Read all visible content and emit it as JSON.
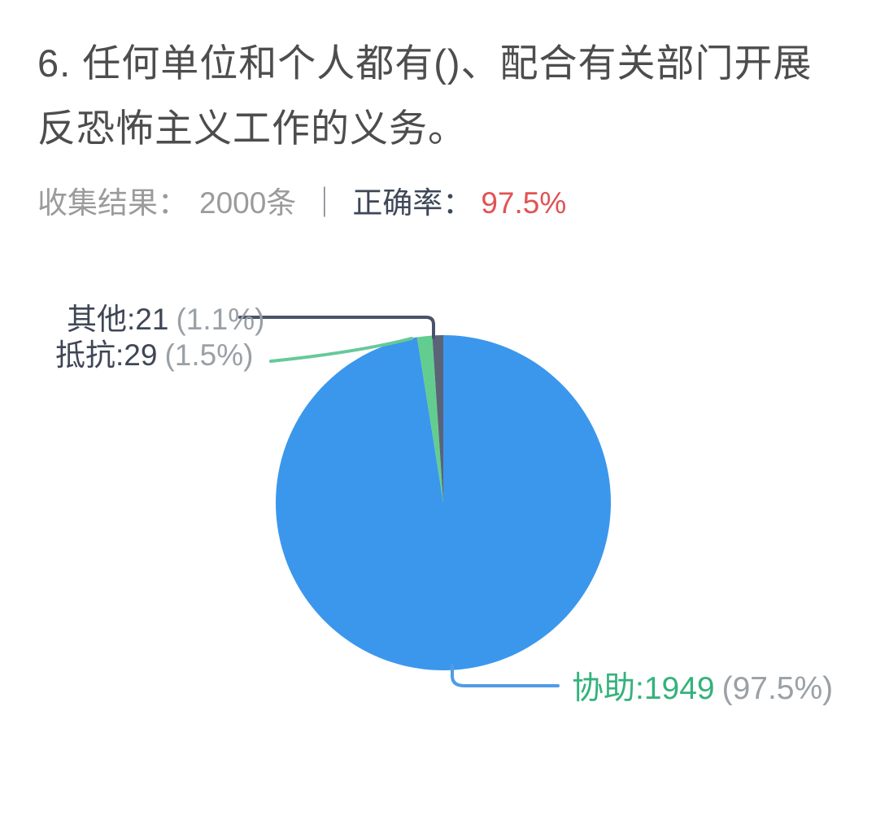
{
  "page": {
    "background": "#ffffff"
  },
  "question": {
    "number": "6.",
    "title_lines": {
      "line1": "6. 任何单位和个人都有()、配合有关部门开展",
      "line2": "反恐怖主义工作的义务。"
    }
  },
  "stats": {
    "collected_label": "收集结果：",
    "collected_value": "2000条",
    "separator": "｜",
    "accuracy_label": "正确率：",
    "accuracy_value": "97.5%",
    "accuracy_color": "#e05353",
    "muted_color": "#9b9b9b",
    "dark_color": "#3d4757"
  },
  "chart_data": {
    "type": "pie",
    "total": 2000,
    "start_angle_deg": 0,
    "direction": "clockwise",
    "legend_position": "none",
    "slices": [
      {
        "key": "assist",
        "label": "协助",
        "value": 1949,
        "percent": "97.5%",
        "label_text": "协助:1949",
        "percent_text": "(97.5%)",
        "color": "#3b97ec",
        "line_color": "#4f9ce8",
        "label_color": "#35b27c"
      },
      {
        "key": "resist",
        "label": "抵抗",
        "value": 29,
        "percent": "1.5%",
        "label_text": "抵抗:29",
        "percent_text": "(1.5%)",
        "color": "#63cd90",
        "line_color": "#66c998",
        "label_color": "#3f4756"
      },
      {
        "key": "other",
        "label": "其他",
        "value": 21,
        "percent": "1.1%",
        "label_text": "其他:21",
        "percent_text": "(1.1%)",
        "color": "#5b6377",
        "line_color": "#49536b",
        "label_color": "#3f4756"
      }
    ]
  }
}
